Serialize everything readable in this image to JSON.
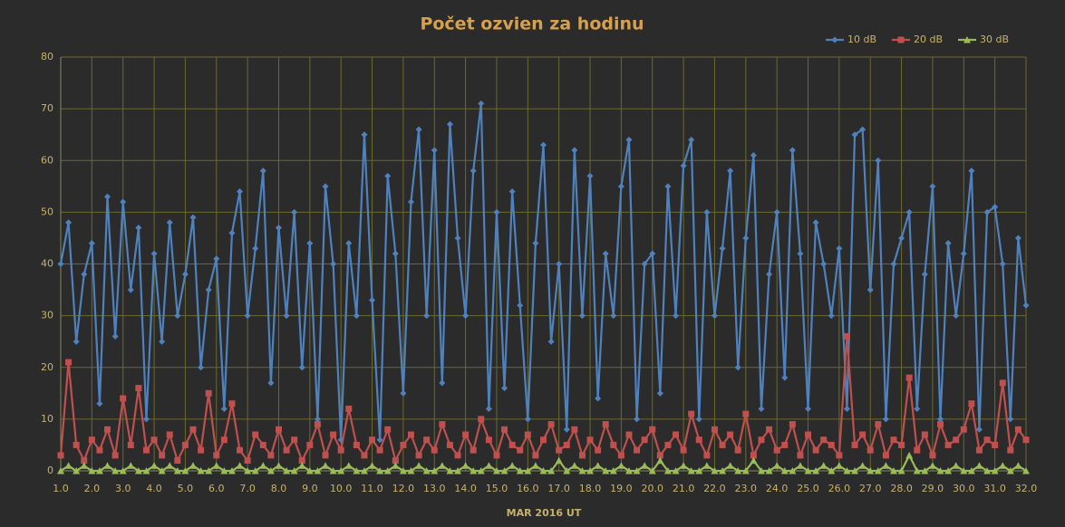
{
  "chart_data": {
    "type": "line",
    "title": "Počet ozvien za hodinu",
    "xlabel": "MAR 2016 UT",
    "legend": "top-right",
    "grid": true,
    "xlim": [
      1,
      32
    ],
    "ylim": [
      0,
      80
    ],
    "yticks": [
      0,
      10,
      20,
      30,
      40,
      50,
      60,
      70,
      80
    ],
    "xticks": [
      {
        "value": 1,
        "label": "1.0"
      },
      {
        "value": 2,
        "label": "2.0"
      },
      {
        "value": 3,
        "label": "3.0"
      },
      {
        "value": 4,
        "label": "4.0"
      },
      {
        "value": 5,
        "label": "5.0"
      },
      {
        "value": 6,
        "label": "6.0"
      },
      {
        "value": 7,
        "label": "7.0"
      },
      {
        "value": 8,
        "label": "8.0"
      },
      {
        "value": 9,
        "label": "9.0"
      },
      {
        "value": 10,
        "label": "10.0"
      },
      {
        "value": 11,
        "label": "11.0"
      },
      {
        "value": 12,
        "label": "12.0"
      },
      {
        "value": 13,
        "label": "13.0"
      },
      {
        "value": 14,
        "label": "14.0"
      },
      {
        "value": 15,
        "label": "15.0"
      },
      {
        "value": 16,
        "label": "16.0"
      },
      {
        "value": 17,
        "label": "17.0"
      },
      {
        "value": 18,
        "label": "18.0"
      },
      {
        "value": 19,
        "label": "19.0"
      },
      {
        "value": 20,
        "label": "20.0"
      },
      {
        "value": 21,
        "label": "21.0"
      },
      {
        "value": 22,
        "label": "22.0"
      },
      {
        "value": 23,
        "label": "23.0"
      },
      {
        "value": 24,
        "label": "24.0"
      },
      {
        "value": 25,
        "label": "25.0"
      },
      {
        "value": 26,
        "label": "26.0"
      },
      {
        "value": 27,
        "label": "27.0"
      },
      {
        "value": 28,
        "label": "28.0"
      },
      {
        "value": 29,
        "label": "29.0"
      },
      {
        "value": 30,
        "label": "30.0"
      },
      {
        "value": 31,
        "label": "31.0"
      },
      {
        "value": 32,
        "label": "32.0"
      }
    ],
    "x": [
      1,
      1.25,
      1.5,
      1.75,
      2,
      2.25,
      2.5,
      2.75,
      3,
      3.25,
      3.5,
      3.75,
      4,
      4.25,
      4.5,
      4.75,
      5,
      5.25,
      5.5,
      5.75,
      6,
      6.25,
      6.5,
      6.75,
      7,
      7.25,
      7.5,
      7.75,
      8,
      8.25,
      8.5,
      8.75,
      9,
      9.25,
      9.5,
      9.75,
      10,
      10.25,
      10.5,
      10.75,
      11,
      11.25,
      11.5,
      11.75,
      12,
      12.25,
      12.5,
      12.75,
      13,
      13.25,
      13.5,
      13.75,
      14,
      14.25,
      14.5,
      14.75,
      15,
      15.25,
      15.5,
      15.75,
      16,
      16.25,
      16.5,
      16.75,
      17,
      17.25,
      17.5,
      17.75,
      18,
      18.25,
      18.5,
      18.75,
      19,
      19.25,
      19.5,
      19.75,
      20,
      20.25,
      20.5,
      20.75,
      21,
      21.25,
      21.5,
      21.75,
      22,
      22.25,
      22.5,
      22.75,
      23,
      23.25,
      23.5,
      23.75,
      24,
      24.25,
      24.5,
      24.75,
      25,
      25.25,
      25.5,
      25.75,
      26,
      26.25,
      26.5,
      26.75,
      27,
      27.25,
      27.5,
      27.75,
      28,
      28.25,
      28.5,
      28.75,
      29,
      29.25,
      29.5,
      29.75,
      30,
      30.25,
      30.5,
      30.75,
      31,
      31.25,
      31.5,
      31.75,
      32
    ],
    "series": [
      {
        "name": "10 dB",
        "color": "#4f81bd",
        "marker": "diamond",
        "values": [
          40,
          48,
          25,
          38,
          44,
          13,
          53,
          26,
          52,
          35,
          47,
          10,
          42,
          25,
          48,
          30,
          38,
          49,
          20,
          35,
          41,
          12,
          46,
          54,
          30,
          43,
          58,
          17,
          47,
          30,
          50,
          20,
          44,
          10,
          55,
          40,
          6,
          44,
          30,
          65,
          33,
          6,
          57,
          42,
          15,
          52,
          66,
          30,
          62,
          17,
          67,
          45,
          30,
          58,
          71,
          12,
          50,
          16,
          54,
          32,
          10,
          44,
          63,
          25,
          40,
          8,
          62,
          30,
          57,
          14,
          42,
          30,
          55,
          64,
          10,
          40,
          42,
          15,
          55,
          30,
          59,
          64,
          10,
          50,
          30,
          43,
          58,
          20,
          45,
          61,
          12,
          38,
          50,
          18,
          62,
          42,
          12,
          48,
          40,
          30,
          43,
          12,
          65,
          66,
          35,
          60,
          10,
          40,
          45,
          50,
          12,
          38,
          55,
          10,
          44,
          30,
          42,
          58,
          8,
          50,
          51,
          40,
          10,
          45,
          32
        ]
      },
      {
        "name": "20 dB",
        "color": "#c0504d",
        "marker": "square",
        "values": [
          3,
          21,
          5,
          2,
          6,
          4,
          8,
          3,
          14,
          5,
          16,
          4,
          6,
          3,
          7,
          2,
          5,
          8,
          4,
          15,
          3,
          6,
          13,
          4,
          2,
          7,
          5,
          3,
          8,
          4,
          6,
          2,
          5,
          9,
          3,
          7,
          4,
          12,
          5,
          3,
          6,
          4,
          8,
          2,
          5,
          7,
          3,
          6,
          4,
          9,
          5,
          3,
          7,
          4,
          10,
          6,
          3,
          8,
          5,
          4,
          7,
          3,
          6,
          9,
          4,
          5,
          8,
          3,
          6,
          4,
          9,
          5,
          3,
          7,
          4,
          6,
          8,
          3,
          5,
          7,
          4,
          11,
          6,
          3,
          8,
          5,
          7,
          4,
          11,
          3,
          6,
          8,
          4,
          5,
          9,
          3,
          7,
          4,
          6,
          5,
          3,
          26,
          5,
          7,
          4,
          9,
          3,
          6,
          5,
          18,
          4,
          7,
          3,
          9,
          5,
          6,
          8,
          13,
          4,
          6,
          5,
          17,
          4,
          8,
          6
        ]
      },
      {
        "name": "30 dB",
        "color": "#9bbb59",
        "marker": "triangle",
        "values": [
          0,
          1,
          0,
          1,
          0,
          0,
          1,
          0,
          0,
          1,
          0,
          0,
          1,
          0,
          1,
          0,
          0,
          1,
          0,
          0,
          1,
          0,
          0,
          1,
          0,
          0,
          1,
          0,
          1,
          0,
          0,
          1,
          0,
          0,
          1,
          0,
          0,
          1,
          0,
          0,
          1,
          0,
          0,
          1,
          0,
          0,
          1,
          0,
          0,
          1,
          0,
          0,
          1,
          0,
          0,
          1,
          0,
          0,
          1,
          0,
          0,
          1,
          0,
          0,
          2,
          0,
          1,
          0,
          0,
          1,
          0,
          0,
          1,
          0,
          0,
          1,
          0,
          2,
          0,
          0,
          1,
          0,
          0,
          1,
          0,
          0,
          1,
          0,
          0,
          2,
          0,
          0,
          1,
          0,
          0,
          1,
          0,
          0,
          1,
          0,
          1,
          0,
          0,
          1,
          0,
          0,
          1,
          0,
          0,
          3,
          0,
          0,
          1,
          0,
          0,
          1,
          0,
          0,
          1,
          0,
          0,
          1,
          0,
          1,
          0
        ]
      }
    ]
  }
}
